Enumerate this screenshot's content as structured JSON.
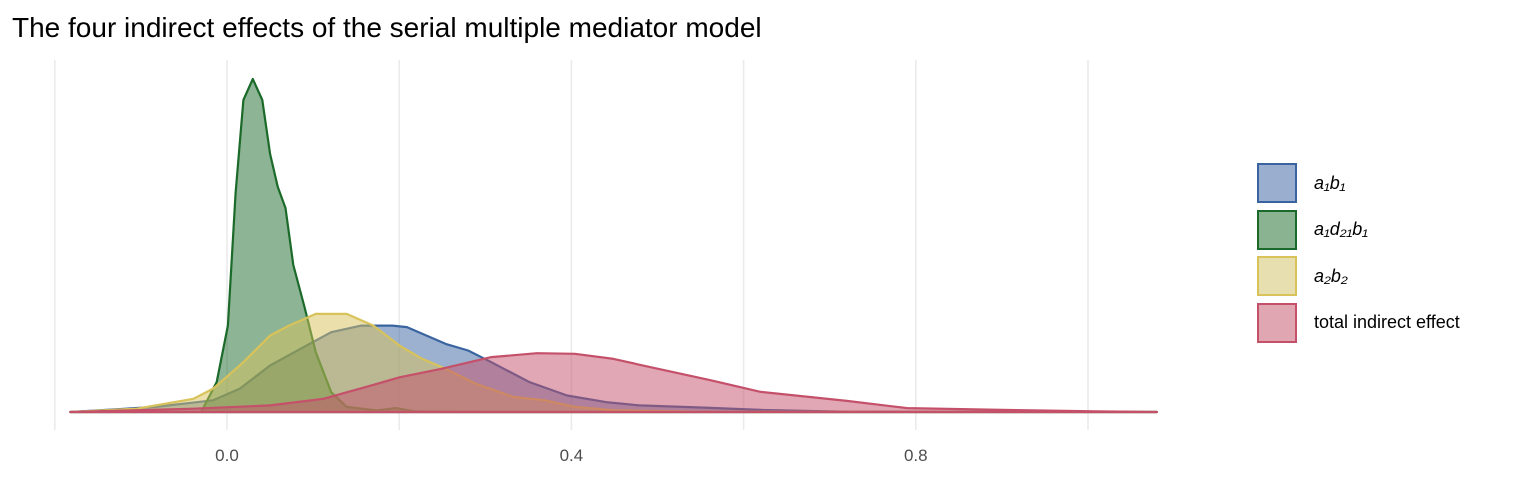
{
  "chart_data": {
    "type": "area",
    "title": "The four indirect effects of the serial multiple mediator model",
    "xlabel": "",
    "ylabel": "",
    "xlim": [
      -0.2,
      1.08
    ],
    "ylim": [
      0,
      11.5
    ],
    "x_ticks": [
      0.0,
      0.4,
      0.8
    ],
    "x_tick_labels": [
      "0.0",
      "0.4",
      "0.8"
    ],
    "x_gridlines": [
      -0.2,
      0.0,
      0.2,
      0.4,
      0.6,
      0.8,
      1.0
    ],
    "y_axis_shown": false,
    "legend_position": "right",
    "series": [
      {
        "name": "a₁b₁",
        "stroke": "#3A64A0",
        "fill": "#9AAFCF",
        "points": [
          [
            -0.182,
            0
          ],
          [
            -0.083,
            0.17
          ],
          [
            -0.016,
            0.39
          ],
          [
            0.015,
            0.78
          ],
          [
            0.05,
            1.55
          ],
          [
            0.085,
            2.1
          ],
          [
            0.121,
            2.66
          ],
          [
            0.156,
            2.88
          ],
          [
            0.192,
            2.88
          ],
          [
            0.209,
            2.83
          ],
          [
            0.254,
            2.27
          ],
          [
            0.28,
            2.05
          ],
          [
            0.307,
            1.66
          ],
          [
            0.351,
            1.0
          ],
          [
            0.395,
            0.55
          ],
          [
            0.44,
            0.33
          ],
          [
            0.479,
            0.22
          ],
          [
            0.55,
            0.15
          ],
          [
            0.62,
            0.07
          ],
          [
            0.72,
            0.01
          ],
          [
            1.08,
            0
          ]
        ]
      },
      {
        "name": "a₁d₂₁b₁",
        "stroke": "#1B6A2A",
        "fill": "#8AB391",
        "points": [
          [
            -0.182,
            0
          ],
          [
            -0.03,
            0
          ],
          [
            -0.012,
            1.0
          ],
          [
            0.001,
            2.88
          ],
          [
            0.01,
            7.3
          ],
          [
            0.019,
            10.4
          ],
          [
            0.03,
            11.1
          ],
          [
            0.041,
            10.4
          ],
          [
            0.05,
            8.6
          ],
          [
            0.059,
            7.5
          ],
          [
            0.068,
            6.8
          ],
          [
            0.077,
            4.9
          ],
          [
            0.09,
            3.5
          ],
          [
            0.103,
            2.0
          ],
          [
            0.121,
            0.66
          ],
          [
            0.139,
            0.17
          ],
          [
            0.174,
            0.05
          ],
          [
            0.196,
            0.13
          ],
          [
            0.218,
            0.02
          ],
          [
            0.3,
            0
          ],
          [
            1.08,
            0
          ]
        ]
      },
      {
        "name": "a₂b₂",
        "stroke": "#D8C25A",
        "fill": "#E8DFB0",
        "points": [
          [
            -0.182,
            0
          ],
          [
            -0.105,
            0.11
          ],
          [
            -0.039,
            0.44
          ],
          [
            -0.016,
            0.78
          ],
          [
            0.019,
            1.66
          ],
          [
            0.05,
            2.55
          ],
          [
            0.072,
            2.88
          ],
          [
            0.103,
            3.27
          ],
          [
            0.139,
            3.27
          ],
          [
            0.17,
            2.88
          ],
          [
            0.201,
            2.2
          ],
          [
            0.227,
            1.77
          ],
          [
            0.254,
            1.44
          ],
          [
            0.289,
            0.94
          ],
          [
            0.333,
            0.5
          ],
          [
            0.369,
            0.39
          ],
          [
            0.404,
            0.17
          ],
          [
            0.449,
            0.06
          ],
          [
            0.55,
            0.01
          ],
          [
            1.08,
            0
          ]
        ]
      },
      {
        "name": "total indirect effect",
        "stroke": "#C4506A",
        "fill": "#E0A7B2",
        "points": [
          [
            -0.182,
            0
          ],
          [
            -0.039,
            0.11
          ],
          [
            0.05,
            0.22
          ],
          [
            0.112,
            0.44
          ],
          [
            0.161,
            0.83
          ],
          [
            0.201,
            1.16
          ],
          [
            0.249,
            1.44
          ],
          [
            0.307,
            1.83
          ],
          [
            0.36,
            1.96
          ],
          [
            0.404,
            1.94
          ],
          [
            0.449,
            1.77
          ],
          [
            0.48,
            1.57
          ],
          [
            0.56,
            1.07
          ],
          [
            0.62,
            0.67
          ],
          [
            0.72,
            0.37
          ],
          [
            0.79,
            0.13
          ],
          [
            0.9,
            0.07
          ],
          [
            1.01,
            0.02
          ],
          [
            1.08,
            0
          ]
        ]
      }
    ]
  }
}
